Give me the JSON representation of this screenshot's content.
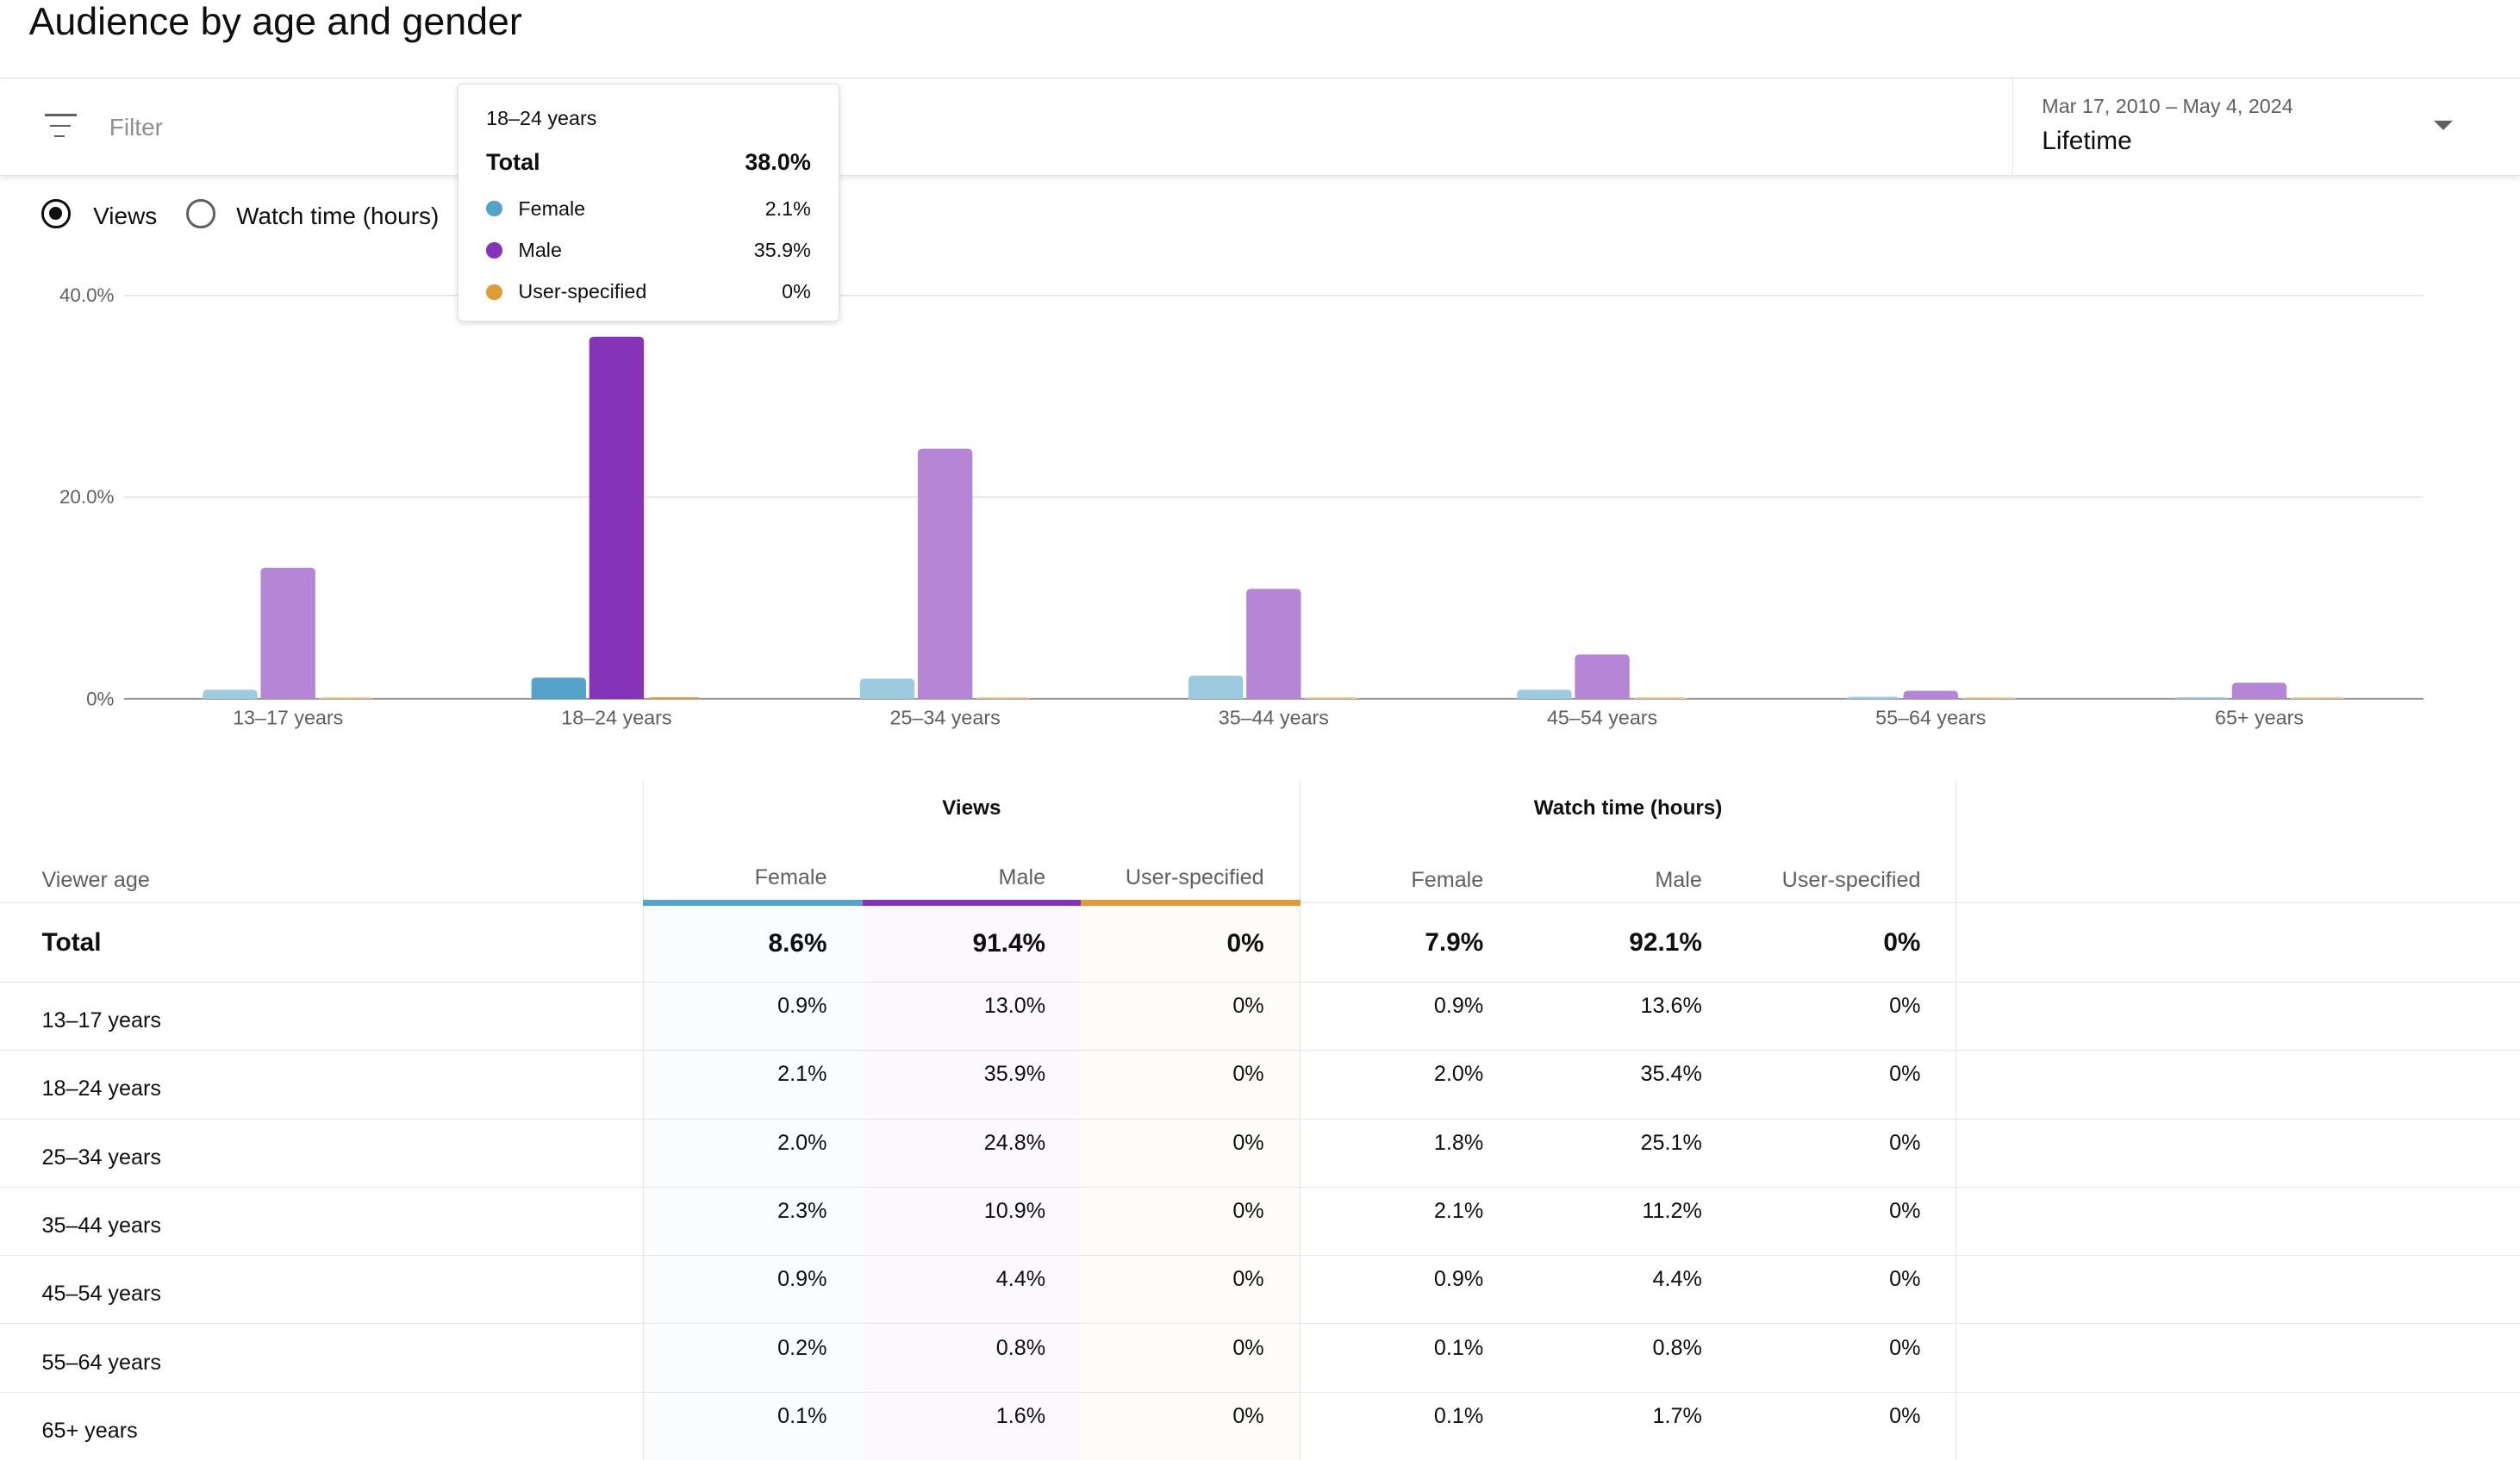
{
  "title": "Audience by age and gender",
  "filter": {
    "placeholder": "Filter",
    "icon": "filter-icon"
  },
  "date": {
    "range": "Mar 17, 2010 – May 4, 2024",
    "value": "Lifetime"
  },
  "metric_toggle": {
    "options": [
      "Views",
      "Watch time (hours)"
    ],
    "selected": "Views"
  },
  "colors": {
    "female": "#55a3c8",
    "male": "#8533b8",
    "user": "#e09b3a",
    "female_light": "#9ccbe0",
    "male_light": "#b585d6",
    "user_light": "#efc88f"
  },
  "tooltip": {
    "title": "18–24 years",
    "total_label": "Total",
    "total": "38.0%",
    "items": [
      {
        "label": "Female",
        "value": "2.1%"
      },
      {
        "label": "Male",
        "value": "35.9%"
      },
      {
        "label": "User-specified",
        "value": "0%"
      }
    ]
  },
  "chart_data": {
    "type": "bar",
    "categories": [
      "13–17 years",
      "18–24 years",
      "25–34 years",
      "35–44 years",
      "45–54 years",
      "55–64 years",
      "65+ years"
    ],
    "series": [
      {
        "name": "Female",
        "values": [
          0.9,
          2.1,
          2.0,
          2.3,
          0.9,
          0.2,
          0.1
        ]
      },
      {
        "name": "Male",
        "values": [
          13.0,
          35.9,
          24.8,
          10.9,
          4.4,
          0.8,
          1.6
        ]
      },
      {
        "name": "User-specified",
        "values": [
          0,
          0,
          0,
          0,
          0,
          0,
          0
        ]
      }
    ],
    "yticks": [
      "0%",
      "20.0%",
      "40.0%"
    ],
    "ylim": [
      0,
      40
    ],
    "highlighted": "18–24 years"
  },
  "table": {
    "age_header": "Viewer age",
    "groups": [
      "Views",
      "Watch time (hours)"
    ],
    "sub": [
      "Female",
      "Male",
      "User-specified"
    ],
    "total": {
      "label": "Total",
      "values": [
        "8.6%",
        "91.4%",
        "0%",
        "7.9%",
        "92.1%",
        "0%"
      ]
    },
    "rows": [
      {
        "age": "13–17 years",
        "values": [
          "0.9%",
          "13.0%",
          "0%",
          "0.9%",
          "13.6%",
          "0%"
        ]
      },
      {
        "age": "18–24 years",
        "values": [
          "2.1%",
          "35.9%",
          "0%",
          "2.0%",
          "35.4%",
          "0%"
        ]
      },
      {
        "age": "25–34 years",
        "values": [
          "2.0%",
          "24.8%",
          "0%",
          "1.8%",
          "25.1%",
          "0%"
        ]
      },
      {
        "age": "35–44 years",
        "values": [
          "2.3%",
          "10.9%",
          "0%",
          "2.1%",
          "11.2%",
          "0%"
        ]
      },
      {
        "age": "45–54 years",
        "values": [
          "0.9%",
          "4.4%",
          "0%",
          "0.9%",
          "4.4%",
          "0%"
        ]
      },
      {
        "age": "55–64 years",
        "values": [
          "0.2%",
          "0.8%",
          "0%",
          "0.1%",
          "0.8%",
          "0%"
        ]
      },
      {
        "age": "65+ years",
        "values": [
          "0.1%",
          "1.6%",
          "0%",
          "0.1%",
          "1.7%",
          "0%"
        ]
      }
    ]
  }
}
